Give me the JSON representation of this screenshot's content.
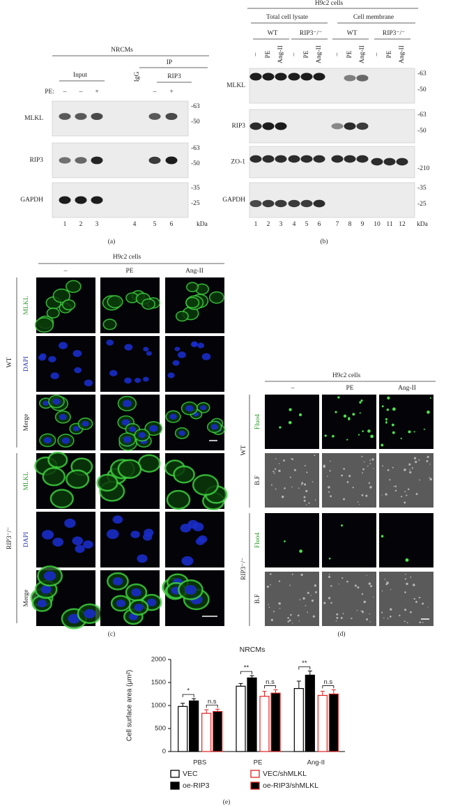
{
  "panel_a": {
    "title": "NRCMs",
    "groups": [
      "Input",
      "IP"
    ],
    "igg": "IgG",
    "ip_antibody": "RIP3",
    "treatment_label": "PE:",
    "treatments": [
      "–",
      "–",
      "+",
      null,
      "–",
      "+"
    ],
    "rows": [
      {
        "label": "MLKL",
        "markers": [
          "-63",
          "-50"
        ]
      },
      {
        "label": "RIP3",
        "markers": [
          "-63",
          "-50"
        ]
      },
      {
        "label": "GAPDH",
        "markers": [
          "-35",
          "-25"
        ]
      }
    ],
    "lanes": [
      "1",
      "2",
      "3",
      "4",
      "5",
      "6"
    ],
    "unit": "kDa",
    "caption": "(a)"
  },
  "panel_b": {
    "title": "H9c2 cells",
    "fractions": [
      "Total cell lysate",
      "Cell membrane"
    ],
    "genotypes": [
      "WT",
      "RIP3⁻/⁻",
      "WT",
      "RIP3⁻/⁻"
    ],
    "treatments": [
      "–",
      "PE",
      "Ang-II",
      "–",
      "PE",
      "Ang-II",
      "–",
      "PE",
      "Ang-II",
      "–",
      "PE",
      "Ang-II"
    ],
    "rows": [
      {
        "label": "MLKL",
        "markers": [
          "-63",
          "-50"
        ]
      },
      {
        "label": "RIP3",
        "markers": [
          "-63",
          "-50"
        ]
      },
      {
        "label": "ZO-1",
        "markers": [
          "-210"
        ]
      },
      {
        "label": "GAPDH",
        "markers": [
          "-35",
          "-25"
        ]
      }
    ],
    "lanes": [
      "1",
      "2",
      "3",
      "4",
      "5",
      "6",
      "7",
      "8",
      "9",
      "10",
      "11",
      "12"
    ],
    "unit": "kDa",
    "caption": "(b)"
  },
  "panel_c": {
    "title": "H9c2 cells",
    "columns": [
      "–",
      "PE",
      "Ang-II"
    ],
    "groups": [
      {
        "label": "WT",
        "rows": [
          "MLKL",
          "DAPI",
          "Merge"
        ]
      },
      {
        "label": "RIP3⁻/⁻",
        "rows": [
          "MLKL",
          "DAPI",
          "Merge"
        ]
      }
    ],
    "caption": "(c)"
  },
  "panel_d": {
    "title": "H9c2 cells",
    "columns": [
      "–",
      "PE",
      "Ang-II"
    ],
    "groups": [
      {
        "label": "WT",
        "rows": [
          "Fluo4",
          "B.F"
        ]
      },
      {
        "label": "RIP3⁻/⁻",
        "rows": [
          "Fluo4",
          "B.F"
        ]
      }
    ],
    "caption": "(d)"
  },
  "chart_data": {
    "type": "bar",
    "title": "NRCMs",
    "y_label": "Cell surface area (μm²)",
    "categories": [
      "PBS",
      "PE",
      "Ang-II"
    ],
    "series": [
      {
        "name": "VEC",
        "color": "#ffffff",
        "edgecolor": "#000000",
        "values": [
          980,
          1420,
          1370
        ],
        "errors": [
          70,
          60,
          160
        ]
      },
      {
        "name": "oe-RIP3",
        "color": "#000000",
        "edgecolor": "#000000",
        "values": [
          1100,
          1600,
          1660
        ],
        "errors": [
          50,
          50,
          90
        ]
      },
      {
        "name": "VEC/shMLKL",
        "color": "#ffffff",
        "edgecolor": "#e02020",
        "values": [
          830,
          1200,
          1220
        ],
        "errors": [
          80,
          110,
          90
        ]
      },
      {
        "name": "oe-RIP3/shMLKL",
        "color": "#000000",
        "edgecolor": "#e02020",
        "values": [
          870,
          1270,
          1250
        ],
        "errors": [
          50,
          70,
          90
        ]
      }
    ],
    "annotations": [
      "*",
      "n.s",
      "**",
      "n.s",
      "**",
      "n.s"
    ],
    "ylim": [
      0,
      2000
    ],
    "yticks": [
      0,
      500,
      1000,
      1500,
      2000
    ],
    "caption": "(e)"
  }
}
